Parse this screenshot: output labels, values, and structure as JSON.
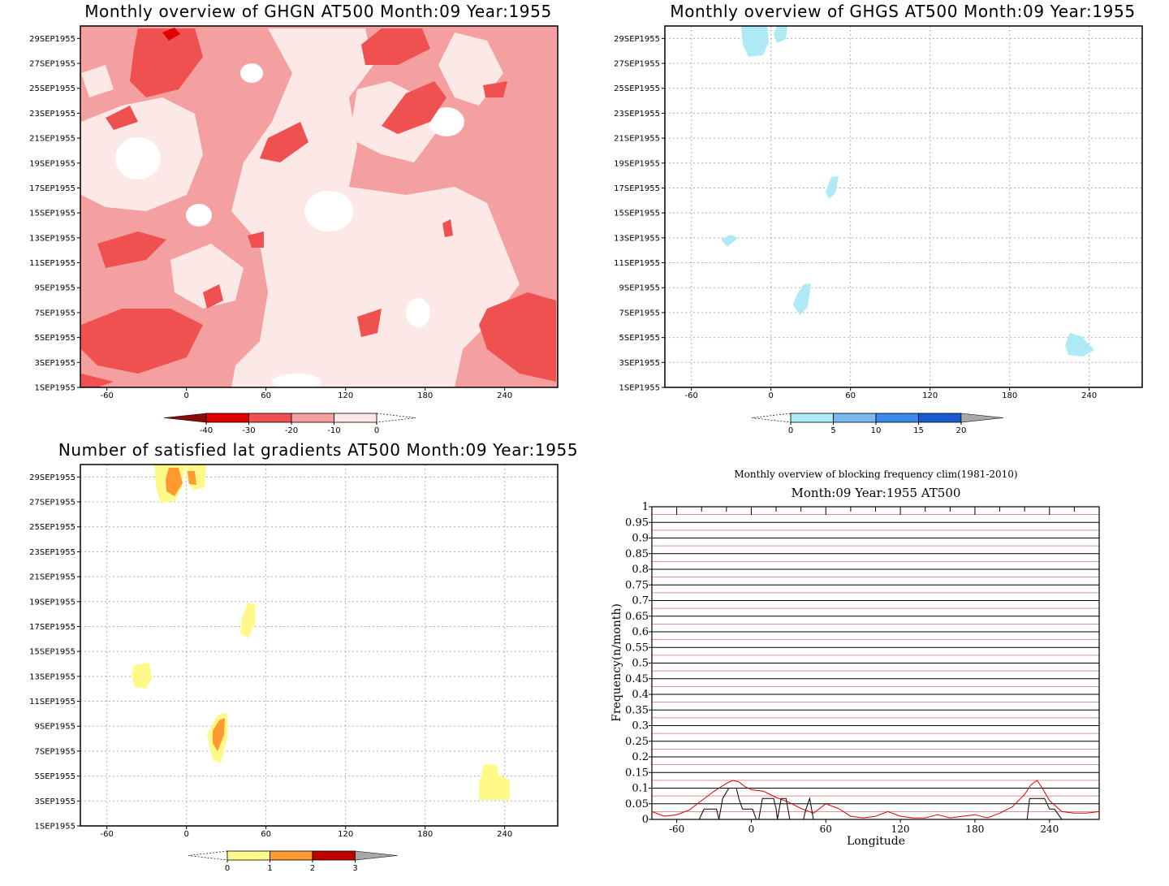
{
  "chart_data": [
    {
      "type": "heatmap",
      "title": "Monthly overview of GHGN AT500 Month:09 Year:1955",
      "x_ticks": [
        "-60",
        "0",
        "60",
        "120",
        "180",
        "240"
      ],
      "y_ticks": [
        "1SEP1955",
        "3SEP1955",
        "5SEP1955",
        "7SEP1955",
        "9SEP1955",
        "11SEP1955",
        "13SEP1955",
        "15SEP1955",
        "17SEP1955",
        "19SEP1955",
        "21SEP1955",
        "23SEP1955",
        "25SEP1955",
        "27SEP1955",
        "29SEP1955"
      ],
      "xlim": [
        -80,
        280
      ],
      "ylim": [
        1,
        30
      ],
      "colorbar": {
        "labels": [
          "-40",
          "-30",
          "-20",
          "-10",
          "0"
        ],
        "colors": [
          "#8b0a0a",
          "#e00000",
          "#ef5050",
          "#f5a0a0",
          "#fde8e8"
        ]
      },
      "colors": {
        "-10 to 0": "#fde8e8",
        "-20 to -10": "#f5a0a0",
        "-30 to -20": "#ef5050",
        "-40 to -30": "#e00000"
      }
    },
    {
      "type": "heatmap",
      "title": "Monthly overview of GHGS AT500 Month:09 Year:1955",
      "x_ticks": [
        "-60",
        "0",
        "60",
        "120",
        "180",
        "240"
      ],
      "y_ticks": [
        "1SEP1955",
        "3SEP1955",
        "5SEP1955",
        "7SEP1955",
        "9SEP1955",
        "11SEP1955",
        "13SEP1955",
        "15SEP1955",
        "17SEP1955",
        "19SEP1955",
        "21SEP1955",
        "23SEP1955",
        "25SEP1955",
        "27SEP1955",
        "29SEP1955"
      ],
      "xlim": [
        -80,
        280
      ],
      "ylim": [
        1,
        30
      ],
      "colorbar": {
        "labels": [
          "0",
          "5",
          "10",
          "15",
          "20"
        ],
        "colors": [
          "#aeeaf5",
          "#7ab8f0",
          "#3a88e8",
          "#1a5ad0",
          "#a8a8a8"
        ]
      }
    },
    {
      "type": "heatmap",
      "title": "Number of satisfied lat gradients AT500 Month:09 Year:1955",
      "x_ticks": [
        "-60",
        "0",
        "60",
        "120",
        "180",
        "240"
      ],
      "y_ticks": [
        "1SEP1955",
        "3SEP1955",
        "5SEP1955",
        "7SEP1955",
        "9SEP1955",
        "11SEP1955",
        "13SEP1955",
        "15SEP1955",
        "17SEP1955",
        "19SEP1955",
        "21SEP1955",
        "23SEP1955",
        "25SEP1955",
        "27SEP1955",
        "29SEP1955"
      ],
      "xlim": [
        -80,
        280
      ],
      "ylim": [
        1,
        30
      ],
      "colorbar": {
        "labels": [
          "0",
          "1",
          "2",
          "3"
        ],
        "colors": [
          "#fff98a",
          "#ff9a30",
          "#c00000",
          "#a8a8a8"
        ]
      }
    },
    {
      "type": "line",
      "title": "Monthly overview of blocking frequency clim(1981-2010)",
      "subtitle": "Month:09 Year:1955  AT500",
      "xlabel": "Longitude",
      "ylabel": "Frequency(n/month)",
      "x_ticks": [
        "-60",
        "0",
        "60",
        "120",
        "180",
        "240"
      ],
      "y_ticks": [
        "0",
        "0.05",
        "0.1",
        "0.15",
        "0.2",
        "0.25",
        "0.3",
        "0.35",
        "0.4",
        "0.45",
        "0.5",
        "0.55",
        "0.6",
        "0.65",
        "0.7",
        "0.75",
        "0.8",
        "0.85",
        "0.9",
        "0.95",
        "1"
      ],
      "xlim": [
        -80,
        280
      ],
      "ylim": [
        0,
        1
      ],
      "grid": true,
      "series": [
        {
          "color": "#e00000",
          "x": [
            -80,
            -70,
            -60,
            -50,
            -40,
            -30,
            -20,
            -15,
            -10,
            -5,
            0,
            10,
            20,
            30,
            40,
            50,
            60,
            70,
            80,
            90,
            100,
            110,
            120,
            130,
            140,
            150,
            160,
            170,
            180,
            190,
            200,
            210,
            220,
            225,
            230,
            235,
            240,
            250,
            260,
            270,
            280
          ],
          "y": [
            0.025,
            0.01,
            0.015,
            0.03,
            0.06,
            0.09,
            0.115,
            0.125,
            0.12,
            0.105,
            0.095,
            0.09,
            0.07,
            0.055,
            0.035,
            0.02,
            0.05,
            0.035,
            0.01,
            0.005,
            0.01,
            0.025,
            0.01,
            0.005,
            0.005,
            0.015,
            0.005,
            0.01,
            0.015,
            0.005,
            0.02,
            0.04,
            0.08,
            0.11,
            0.125,
            0.095,
            0.06,
            0.025,
            0.02,
            0.02,
            0.025
          ]
        },
        {
          "color": "#000000",
          "x": [
            -80,
            -58,
            -52,
            -42,
            -38,
            -32,
            -28,
            -26,
            -23,
            -18,
            -12,
            -10,
            -7,
            1,
            4,
            6,
            9,
            12,
            18,
            20,
            21,
            24,
            28,
            31,
            42,
            44,
            47,
            50,
            200,
            208,
            213,
            222,
            224,
            228,
            232,
            236,
            240,
            244,
            250,
            280
          ],
          "y": [
            0,
            0,
            0,
            0,
            0.033,
            0.033,
            0.033,
            0,
            0.067,
            0.1,
            0.1,
            0.067,
            0.033,
            0.033,
            0,
            0,
            0.067,
            0.067,
            0.067,
            0.033,
            0,
            0.067,
            0.067,
            0,
            0,
            0.033,
            0.067,
            0,
            0,
            0,
            0,
            0,
            0.067,
            0.067,
            0.067,
            0.067,
            0.033,
            0.033,
            0,
            0
          ]
        }
      ]
    }
  ]
}
